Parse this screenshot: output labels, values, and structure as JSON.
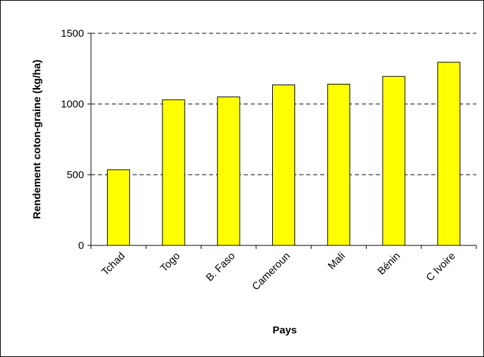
{
  "chart_data": {
    "type": "bar",
    "title": "",
    "xlabel": "Pays",
    "ylabel": "Rendement coton-graine (kg/ha)",
    "categories": [
      "Tchad",
      "Togo",
      "B. Faso",
      "Cameroun",
      "Mali",
      "Bénin",
      "C Ivoire"
    ],
    "values": [
      535,
      1030,
      1050,
      1135,
      1140,
      1195,
      1295
    ],
    "ylim": [
      0,
      1500
    ],
    "yticks": [
      "0",
      "500",
      "1000",
      "1500"
    ],
    "grid": true,
    "legend": "none",
    "bar_color": "#ffff00",
    "bar_edge_color": "#000000"
  }
}
